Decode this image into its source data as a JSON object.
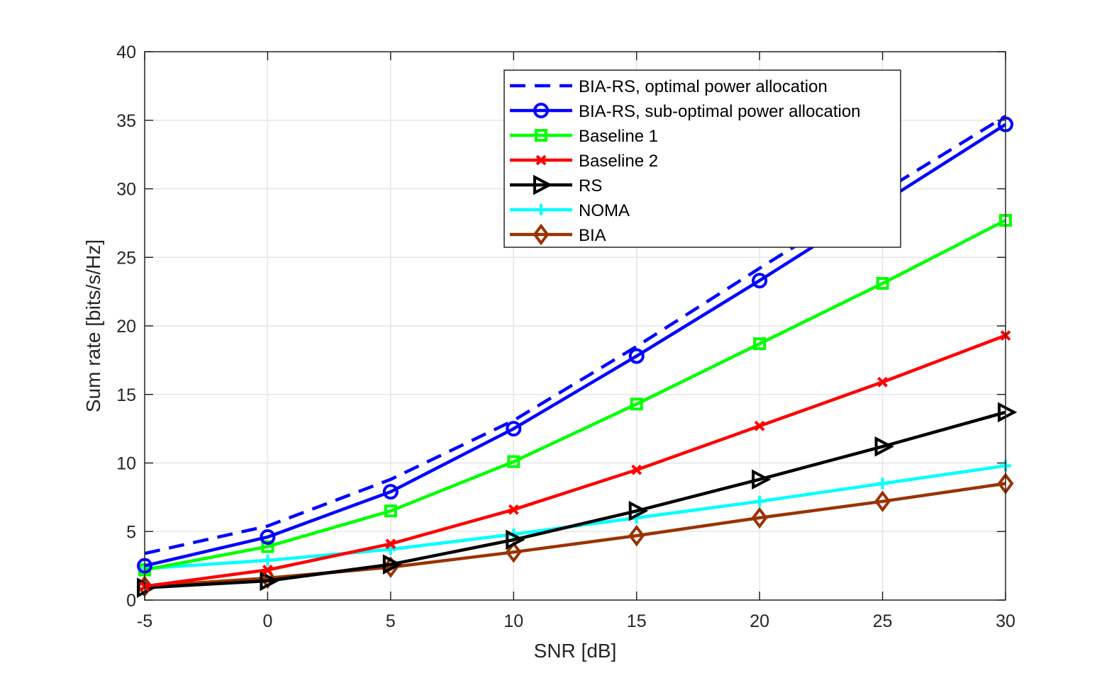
{
  "chart_data": {
    "type": "line",
    "title": "",
    "xlabel": "SNR [dB]",
    "ylabel": "Sum rate [bits/s/Hz]",
    "xlim": [
      -5,
      30
    ],
    "ylim": [
      0,
      40
    ],
    "xticks": [
      -5,
      0,
      5,
      10,
      15,
      20,
      25,
      30
    ],
    "yticks": [
      0,
      5,
      10,
      15,
      20,
      25,
      30,
      35,
      40
    ],
    "grid": true,
    "legend_position": "top-right",
    "x": [
      -5,
      0,
      5,
      10,
      15,
      20,
      25,
      30
    ],
    "series": [
      {
        "name": "BIA-RS, optimal power allocation",
        "color": "#0000ff",
        "style": "dashed",
        "marker": "none",
        "values": [
          3.4,
          5.4,
          8.8,
          13.1,
          18.5,
          24.2,
          29.8,
          35.3
        ]
      },
      {
        "name": "BIA-RS, sub-optimal power allocation",
        "color": "#0000ff",
        "style": "solid",
        "marker": "circle",
        "values": [
          2.5,
          4.6,
          7.9,
          12.5,
          17.8,
          23.3,
          29.0,
          34.7
        ]
      },
      {
        "name": "Baseline 1",
        "color": "#00ff00",
        "style": "solid",
        "marker": "square",
        "values": [
          2.2,
          3.9,
          6.5,
          10.1,
          14.3,
          18.7,
          23.1,
          27.7
        ]
      },
      {
        "name": "Baseline 2",
        "color": "#ff0000",
        "style": "solid",
        "marker": "x",
        "values": [
          1.0,
          2.2,
          4.1,
          6.6,
          9.5,
          12.7,
          15.9,
          19.3
        ]
      },
      {
        "name": "RS",
        "color": "#000000",
        "style": "solid",
        "marker": "triangle-right",
        "values": [
          0.9,
          1.4,
          2.6,
          4.4,
          6.5,
          8.8,
          11.2,
          13.7
        ]
      },
      {
        "name": "NOMA",
        "color": "#00ffff",
        "style": "solid",
        "marker": "plus",
        "values": [
          2.3,
          2.9,
          3.7,
          4.8,
          6.0,
          7.2,
          8.5,
          9.8
        ]
      },
      {
        "name": "BIA",
        "color": "#993300",
        "style": "solid",
        "marker": "diamond",
        "values": [
          1.0,
          1.6,
          2.4,
          3.5,
          4.7,
          6.0,
          7.2,
          8.5
        ]
      }
    ]
  }
}
